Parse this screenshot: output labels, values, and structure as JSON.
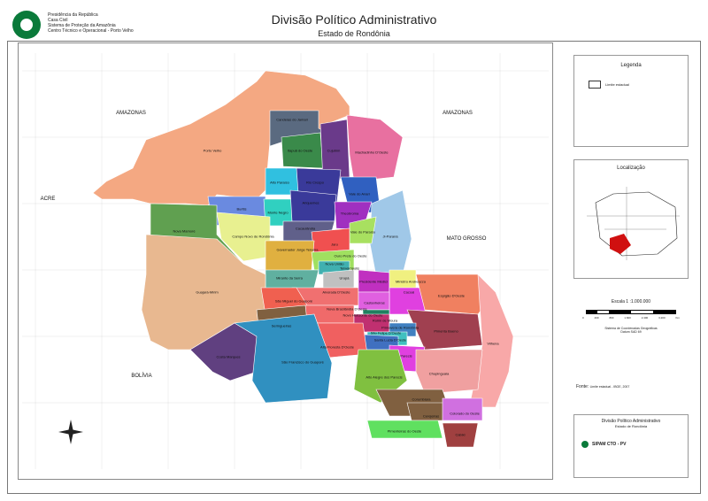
{
  "header": {
    "org_lines": [
      "Presidência da República",
      "Casa Civil",
      "Sistema de Proteção da Amazônia",
      "Centro Técnico e Operacional - Porto Velho"
    ],
    "title": "Divisão Político Administrativo",
    "subtitle": "Estado de Rondônia"
  },
  "map": {
    "neighbors": [
      "AMAZONAS",
      "AMAZONAS",
      "ACRE",
      "MATO GROSSO",
      "BOLÍVIA"
    ],
    "municipalities": [
      "Candeias do Jamari",
      "Itapuã do Oeste",
      "Cujubim",
      "Machadinho D'Oeste",
      "Porto Velho",
      "Alto Paraíso",
      "Rio Crespo",
      "Vale do Anari",
      "Buritis",
      "Monte Negro",
      "Ariquemes",
      "Theobroma",
      "Cacaulândia",
      "Nova Mamoré",
      "Campo Novo de Rondônia",
      "Vale do Paraíso",
      "Ji-Paraná",
      "Jaru",
      "Governador Jorge Teixeira",
      "Ouro Preto do Oeste",
      "Nova União",
      "Teixeirópolis",
      "Mirante da Serra",
      "Urupá",
      "Presidente Médici",
      "Ministro Andreazza",
      "Guajará-Mirim",
      "Alvorada D'Oeste",
      "Cacoal",
      "Espigão D'Oeste",
      "Castanheiras",
      "São Miguel do Guaporé",
      "Nova Brasilândia D'Oeste",
      "Rolim de Moura",
      "Novo Horizonte do Oeste",
      "Seringueiras",
      "Primavera de Rondônia",
      "São Felipe D'Oeste",
      "Pimenta Bueno",
      "Santa Luzia D'Oeste",
      "Alta Floresta D'Oeste",
      "Costa Marques",
      "São Francisco do Guaporé",
      "Vilhena",
      "Parecis",
      "Chupinguaia",
      "Alto Alegre dos Parecis",
      "Corumbiara",
      "Cerejeiras",
      "Colorado do Oeste",
      "Pimenteiras do Oeste",
      "Cabixi"
    ]
  },
  "legend": {
    "title": "Legenda",
    "item": "Limite estadual"
  },
  "location": {
    "title": "Localização"
  },
  "scale": {
    "title": "Escala 1 :1.000.000",
    "ticks": [
      "0",
      "400",
      "800",
      "1.600",
      "2.400",
      "3.200"
    ],
    "unit": "Km",
    "system": "Sistema de Coordenadas Geográficas",
    "datum": "Datum SAD 69"
  },
  "source": {
    "label": "Fonte:",
    "text": "Limite estadual - IBGE, 2007"
  },
  "info": {
    "title": "Divisão Político Administrativo",
    "subtitle": "Estado de Rondônia",
    "sipam": "SIPAM CTO - PV"
  },
  "colors": {
    "porto_velho": "#f4a882",
    "guajara": "#e8b890",
    "dark_blue": "#3a3a9a"
  }
}
